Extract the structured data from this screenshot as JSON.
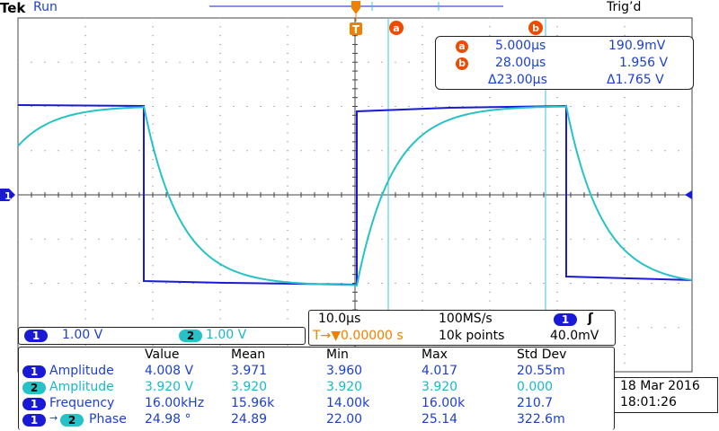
{
  "header": {
    "brand": "Tek",
    "run_state": "Run",
    "trigger_status": "Trig’d"
  },
  "cursor_markers": {
    "a": "a",
    "b": "b",
    "trigger": "T"
  },
  "cursor_readout": {
    "rows": [
      {
        "marker": "a",
        "time": "5.000µs",
        "value": "190.9mV"
      },
      {
        "marker": "b",
        "time": "28.00µs",
        "value": "1.956 V"
      },
      {
        "marker": "Δ",
        "time": "Δ23.00µs",
        "value": "Δ1.765 V"
      }
    ]
  },
  "channel_marker": "1",
  "channels_panel": {
    "ch1": {
      "num": "1",
      "scale": "1.00 V"
    },
    "ch2": {
      "num": "2",
      "scale": "1.00 V"
    }
  },
  "timebase": {
    "time_per_div": "10.0µs",
    "sample_rate": "100MS/s",
    "trigger_channel": "1",
    "trigger_slope_symbol": "ʃ",
    "trigger_position": "T→▼0.00000 s",
    "record_length": "10k points",
    "trigger_level": "40.0mV"
  },
  "measurements": {
    "headers": [
      "Value",
      "Mean",
      "Min",
      "Max",
      "Std Dev"
    ],
    "rows": [
      {
        "chip": "1",
        "chip2": "",
        "label": "Amplitude",
        "value": "4.008 V",
        "mean": "3.971",
        "min": "3.960",
        "max": "4.017",
        "std": "20.55m",
        "color": "blue"
      },
      {
        "chip": "2",
        "chip2": "",
        "label": "Amplitude",
        "value": "3.920 V",
        "mean": "3.920",
        "min": "3.920",
        "max": "3.920",
        "std": "0.000",
        "color": "cyan"
      },
      {
        "chip": "1",
        "chip2": "",
        "label": "Frequency",
        "value": "16.00kHz",
        "mean": "15.96k",
        "min": "14.00k",
        "max": "16.00k",
        "std": "210.7",
        "color": "blue"
      },
      {
        "chip": "1",
        "chip2": "2",
        "label": "Phase",
        "value": "24.98 °",
        "mean": "24.89",
        "min": "22.00",
        "max": "25.14",
        "std": "322.6m",
        "color": "blue"
      }
    ]
  },
  "datetime": {
    "date": "18 Mar  2016",
    "time": "18:01:26"
  },
  "colors": {
    "ch1": "#1a1ad6",
    "ch2": "#26c2c8",
    "cursor": "#3cc6dc",
    "badge": "#f04a00",
    "trigger_marker": "#f08000",
    "grid": "#444444"
  }
}
